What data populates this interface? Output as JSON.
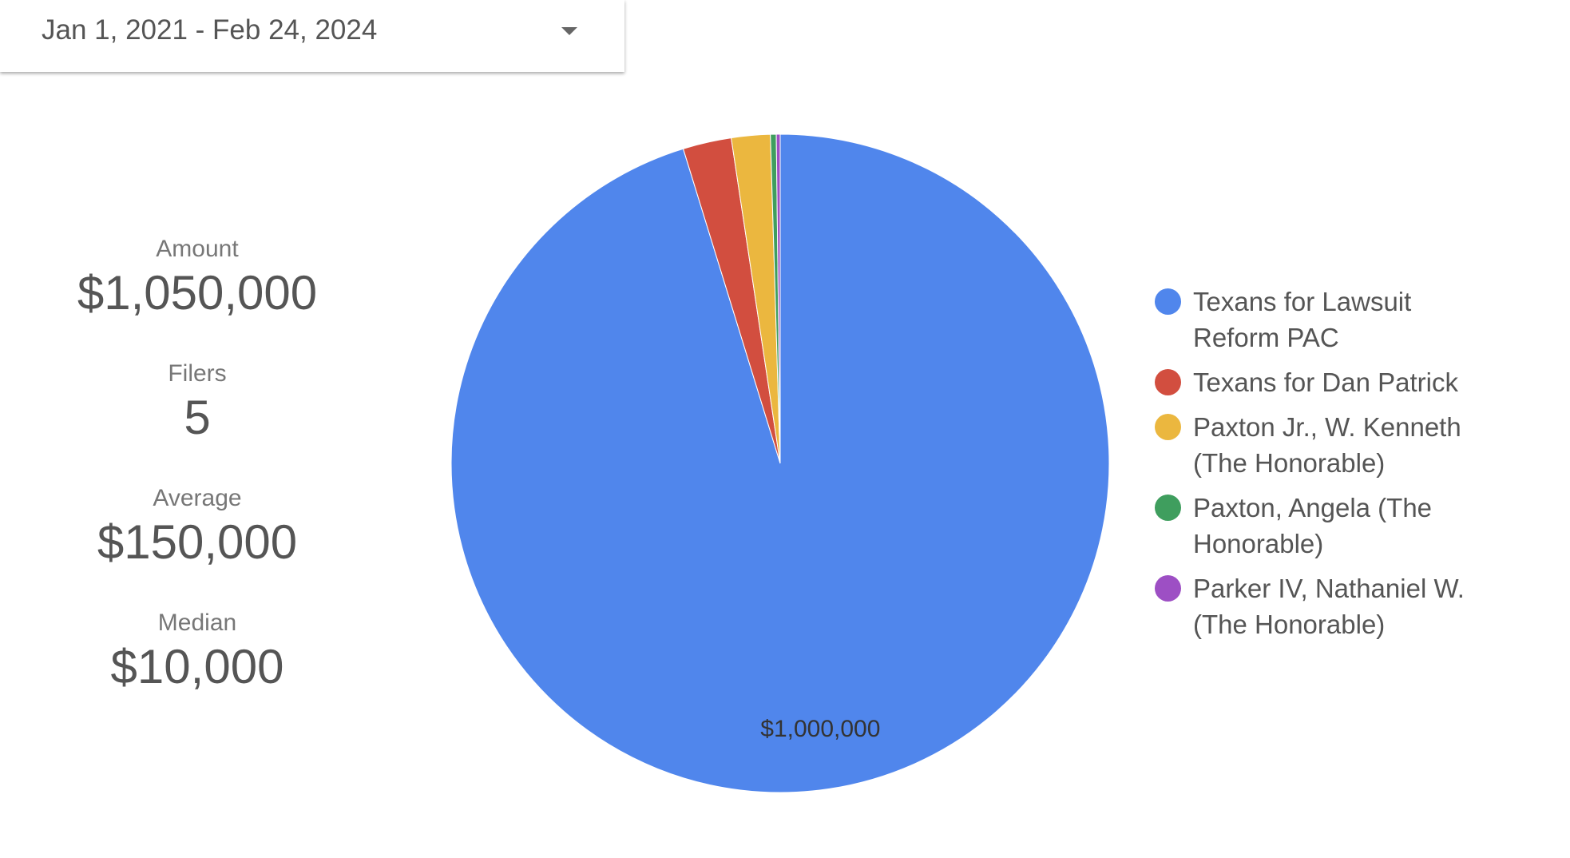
{
  "date_range": "Jan 1, 2021 - Feb 24, 2024",
  "summary": [
    {
      "label": "Amount",
      "value": "$1,050,000"
    },
    {
      "label": "Filers",
      "value": "5"
    },
    {
      "label": "Average",
      "value": "$150,000"
    },
    {
      "label": "Median",
      "value": "$10,000"
    }
  ],
  "chart_data": {
    "type": "pie",
    "categories": [
      "Texans for Lawsuit Reform PAC",
      "Texans for Dan Patrick",
      "Paxton Jr., W. Kenneth (The Honorable)",
      "Paxton, Angela (The Honorable)",
      "Parker IV, Nathaniel W. (The Honorable)"
    ],
    "values": [
      1000000,
      25000,
      20000,
      3000,
      2000
    ],
    "value_labels": [
      "$1,000,000",
      null,
      null,
      null,
      null
    ],
    "colors": [
      "#5086ec",
      "#d24e3f",
      "#ebb73f",
      "#3f9e5e",
      "#9d4fc4"
    ],
    "legend": "right"
  }
}
